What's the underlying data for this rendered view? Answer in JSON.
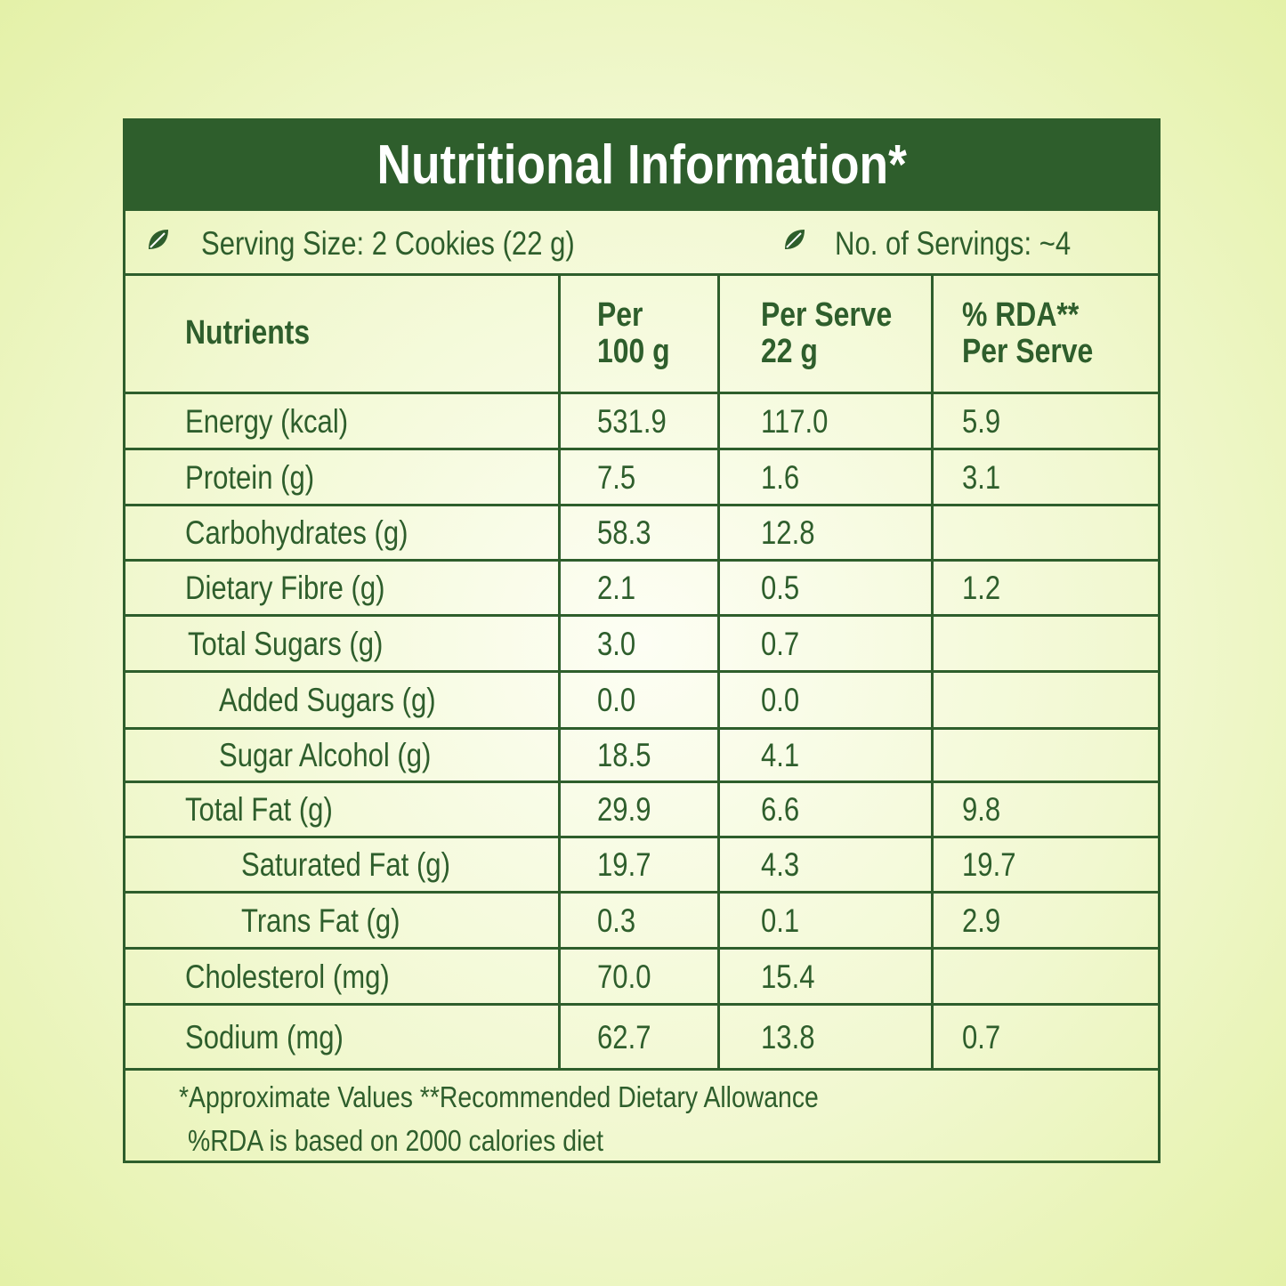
{
  "title": "Nutritional Information*",
  "serving": {
    "size": "Serving Size: 2 Cookies (22 g)",
    "count": "No. of Servings: ~4"
  },
  "table": {
    "header": [
      [
        "Nutrients"
      ],
      [
        "Per",
        "100 g"
      ],
      [
        "Per Serve",
        "22 g"
      ],
      [
        "% RDA**",
        "Per Serve"
      ]
    ],
    "rows": [
      [
        "Energy (kcal)",
        "531.9",
        "117.0",
        "5.9"
      ],
      [
        "Protein (g)",
        "7.5",
        "1.6",
        "3.1"
      ],
      [
        "Carbohydrates (g)",
        "58.3",
        "12.8",
        null
      ],
      [
        "Dietary Fibre (g)",
        "2.1",
        "0.5",
        "1.2"
      ],
      [
        "Total Sugars (g)",
        "3.0",
        "0.7",
        null
      ],
      [
        "Added Sugars (g)",
        "0.0",
        "0.0",
        null
      ],
      [
        "Sugar Alcohol (g)",
        "18.5",
        "4.1",
        null
      ],
      [
        "Total Fat (g)",
        "29.9",
        "6.6",
        "9.8"
      ],
      [
        "Saturated Fat (g)",
        "19.7",
        "4.3",
        "19.7"
      ],
      [
        "Trans Fat (g)",
        "0.3",
        "0.1",
        "2.9"
      ],
      [
        "Cholesterol (mg)",
        "70.0",
        "15.4",
        null
      ],
      [
        "Sodium (mg)",
        "62.7",
        "13.8",
        "0.7"
      ]
    ]
  },
  "footnotes": [
    "*Approximate Values  **Recommended Dietary Allowance",
    "%RDA is based on 2000 calories diet"
  ]
}
